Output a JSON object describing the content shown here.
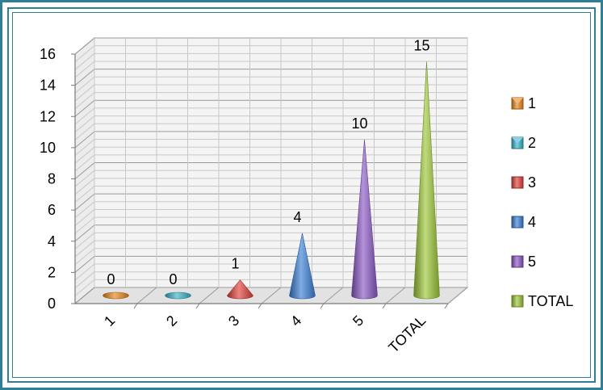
{
  "chart_data": {
    "type": "bar",
    "shape": "cone-3d",
    "categories": [
      "1",
      "2",
      "3",
      "4",
      "5",
      "TOTAL"
    ],
    "values": [
      0,
      0,
      1,
      4,
      10,
      15
    ],
    "data_labels": [
      "0",
      "0",
      "1",
      "4",
      "10",
      "15"
    ],
    "legend": [
      "1",
      "2",
      "3",
      "4",
      "5",
      "TOTAL"
    ],
    "legend_placement": "right",
    "colors": [
      "#e8871e",
      "#3bb4c8",
      "#e0403a",
      "#3c7fd6",
      "#8a57c4",
      "#9cc637"
    ],
    "y_ticks": [
      "0",
      "2",
      "4",
      "6",
      "8",
      "10",
      "12",
      "14",
      "16"
    ],
    "ylim": [
      0,
      16
    ],
    "grid": true,
    "title": "",
    "xlabel": "",
    "ylabel": ""
  }
}
